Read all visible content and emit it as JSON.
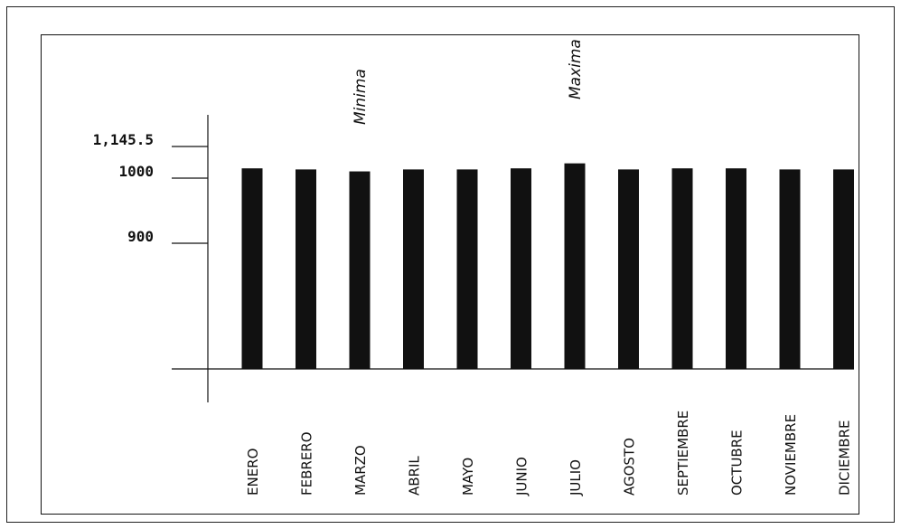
{
  "chart_data": {
    "type": "bar",
    "title": "",
    "xlabel": "",
    "ylabel": "",
    "categories": [
      "ENERO",
      "FEBRERO",
      "MARZO",
      "ABRIL",
      "MAYO",
      "JUNIO",
      "JULIO",
      "AGOSTO",
      "SEPTIEMBRE",
      "OCTUBRE",
      "NOVIEMBRE",
      "DICIEMBRE"
    ],
    "values": [
      1045,
      1040,
      1031,
      1040,
      1040,
      1045,
      1068,
      1040,
      1045,
      1045,
      1040,
      1040
    ],
    "y_ticks": [
      {
        "value": 900,
        "label": "900"
      },
      {
        "value": 1000,
        "label": "1000"
      },
      {
        "value": 1145.5,
        "label": "1,145.5"
      }
    ],
    "annotations": [
      {
        "category": "MARZO",
        "text": "Minima"
      },
      {
        "category": "JULIO",
        "text": "Maxima"
      }
    ],
    "bar_color": "#111111",
    "grid": false,
    "legend": "none"
  }
}
